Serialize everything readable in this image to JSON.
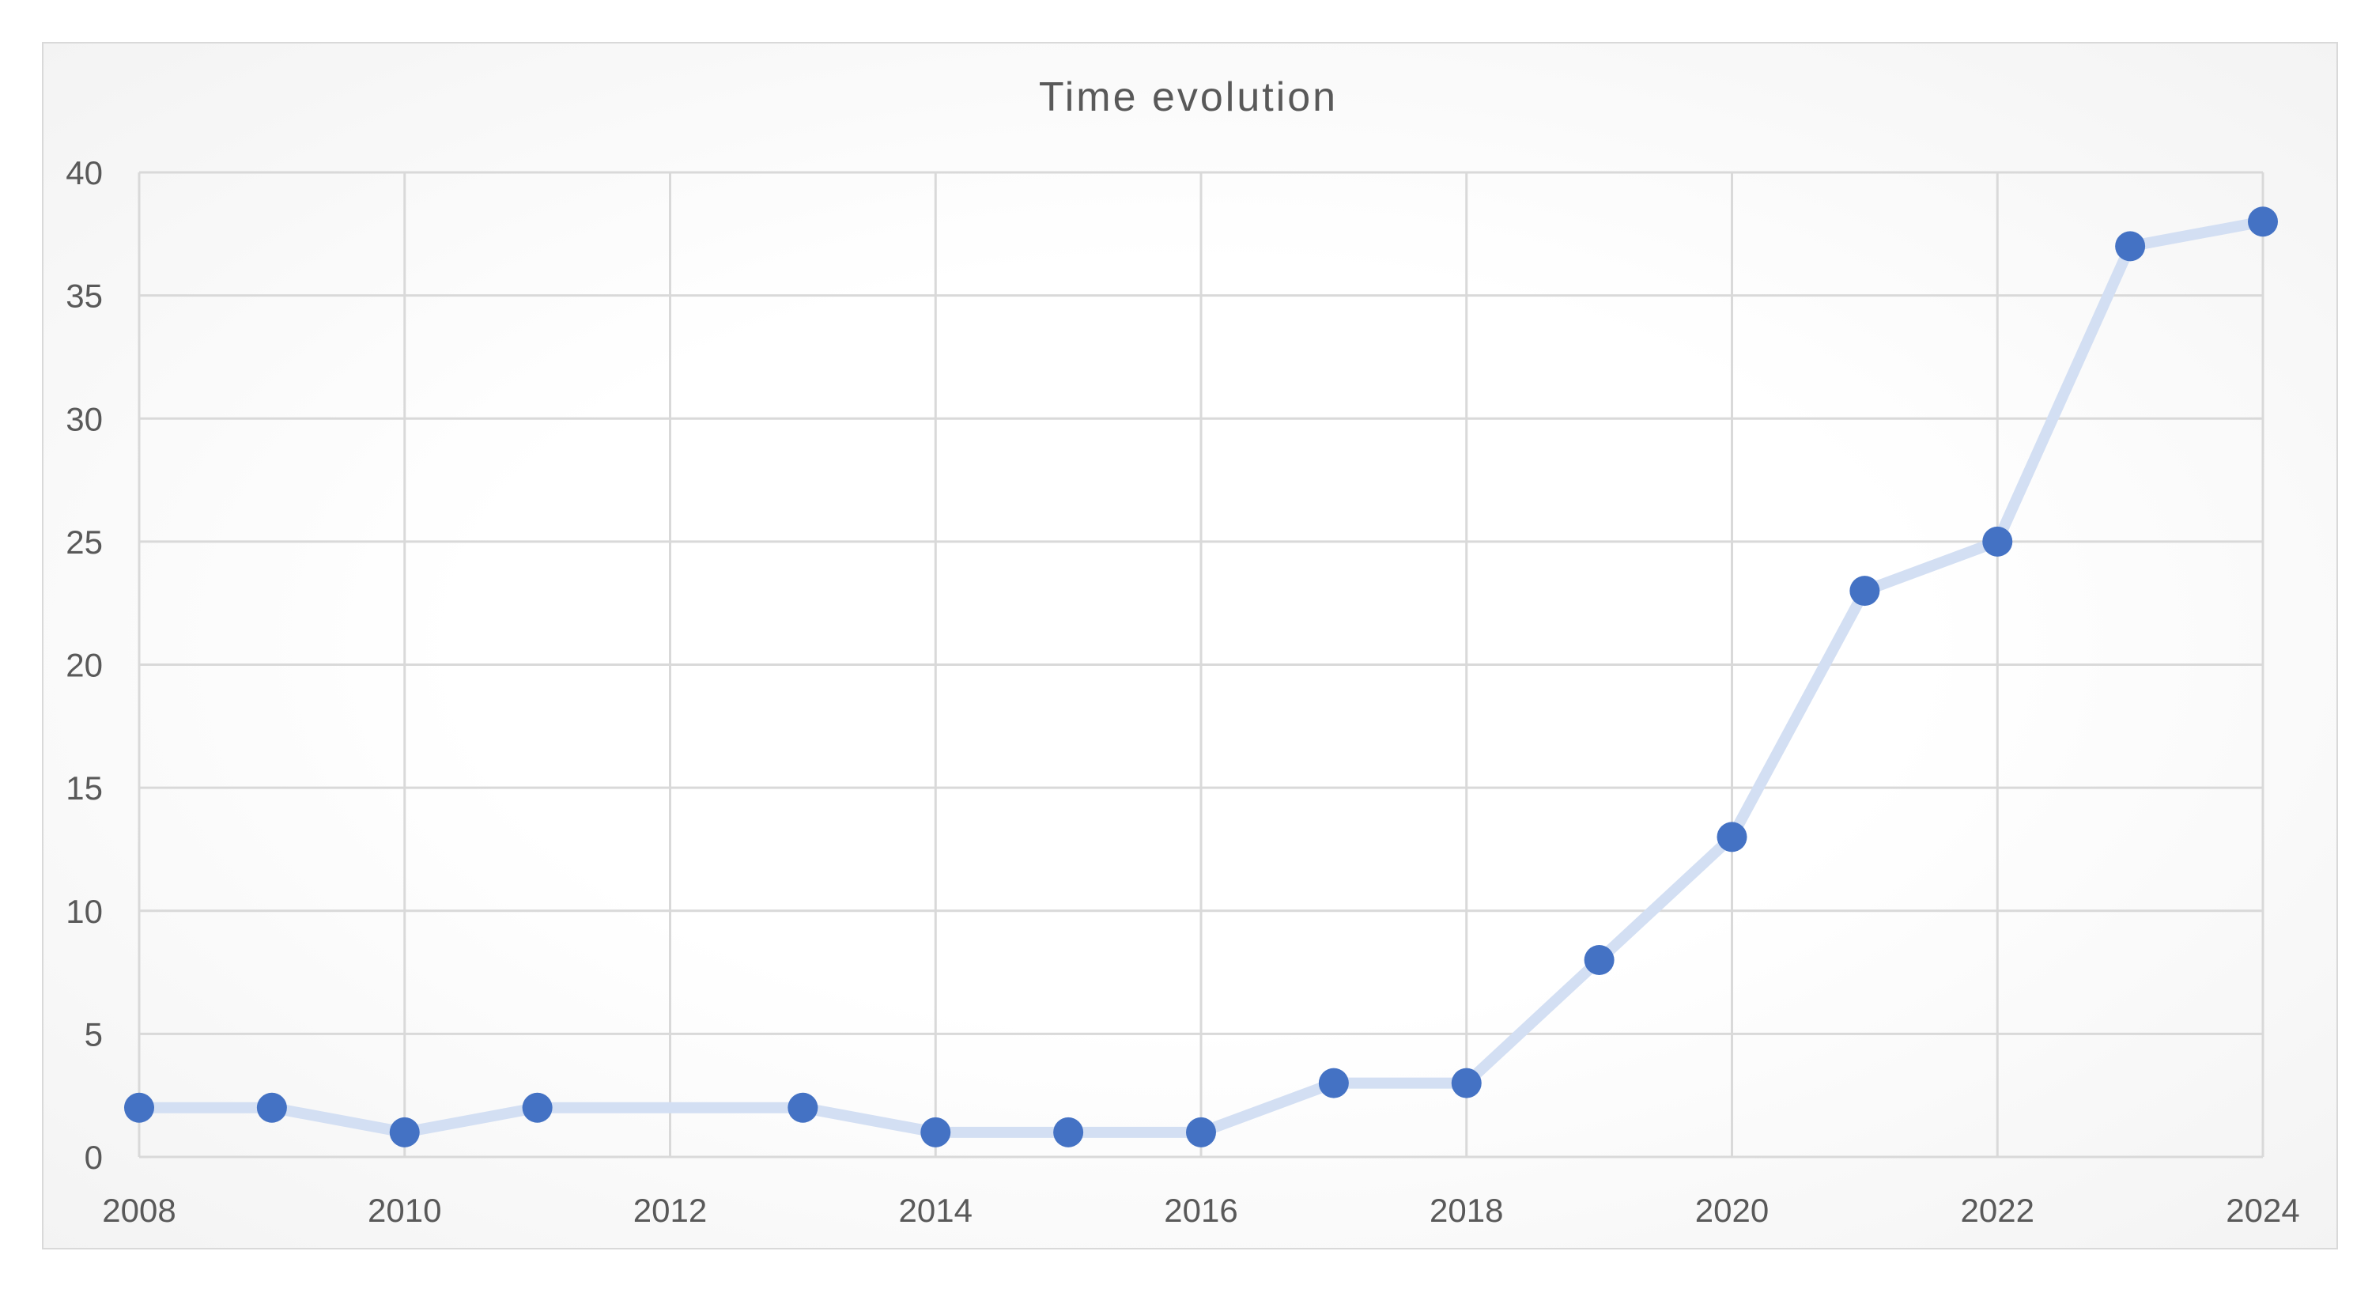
{
  "chart_data": {
    "type": "line",
    "title": "Time evolution",
    "xlabel": "",
    "ylabel": "",
    "x": [
      2008,
      2009,
      2010,
      2011,
      2013,
      2014,
      2015,
      2016,
      2017,
      2018,
      2019,
      2020,
      2021,
      2022,
      2023,
      2024
    ],
    "series": [
      {
        "name": "",
        "values": [
          2,
          2,
          1,
          2,
          2,
          1,
          1,
          1,
          3,
          3,
          8,
          13,
          23,
          25,
          37,
          38
        ]
      }
    ],
    "xlim": [
      2008,
      2024
    ],
    "ylim": [
      0,
      40
    ],
    "x_ticks": [
      "2008",
      "2010",
      "2012",
      "2014",
      "2016",
      "2018",
      "2020",
      "2022",
      "2024"
    ],
    "y_ticks": [
      "0",
      "5",
      "10",
      "15",
      "20",
      "25",
      "30",
      "35",
      "40"
    ],
    "grid": "both",
    "legend": "none",
    "colors": {
      "line": "#d3dff3",
      "marker": "#4472c4",
      "grid": "#d9d9d9",
      "text": "#595959"
    }
  }
}
